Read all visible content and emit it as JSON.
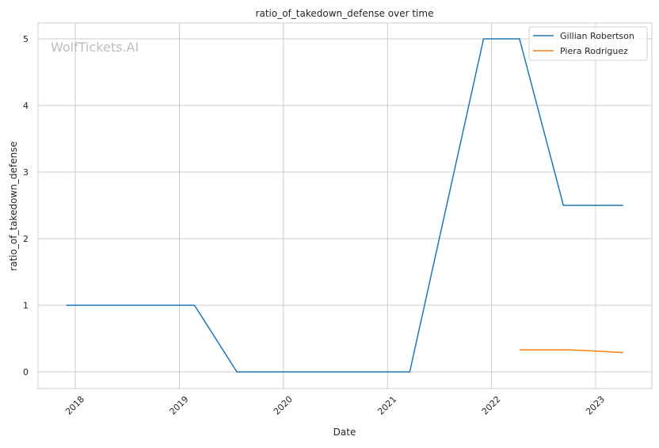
{
  "chart_data": {
    "type": "line",
    "title": "ratio_of_takedown_defense over time",
    "xlabel": "Date",
    "ylabel": "ratio_of_takedown_defense",
    "watermark": "WolfTickets.AI",
    "xlim": [
      "2017-09-01",
      "2023-07-15"
    ],
    "ylim": [
      -0.25,
      5.25
    ],
    "x_ticks": [
      "2018",
      "2019",
      "2020",
      "2021",
      "2022",
      "2023"
    ],
    "y_ticks": [
      "0",
      "1",
      "2",
      "3",
      "4",
      "5"
    ],
    "grid": true,
    "legend_position": "top-right",
    "series": [
      {
        "name": "Gillian Robertson",
        "color": "#1f77b4",
        "x": [
          "2017-11-30",
          "2019-02-23",
          "2019-07-22",
          "2021-03-20",
          "2021-12-04",
          "2022-04-09",
          "2022-09-10",
          "2023-04-08"
        ],
        "y": [
          1,
          1,
          0,
          0,
          5,
          5,
          2.5,
          2.5
        ]
      },
      {
        "name": "Piera Rodriguez",
        "color": "#ff7f0e",
        "x": [
          "2022-04-09",
          "2022-10-08",
          "2023-04-08"
        ],
        "y": [
          0.33,
          0.33,
          0.29
        ]
      }
    ]
  }
}
